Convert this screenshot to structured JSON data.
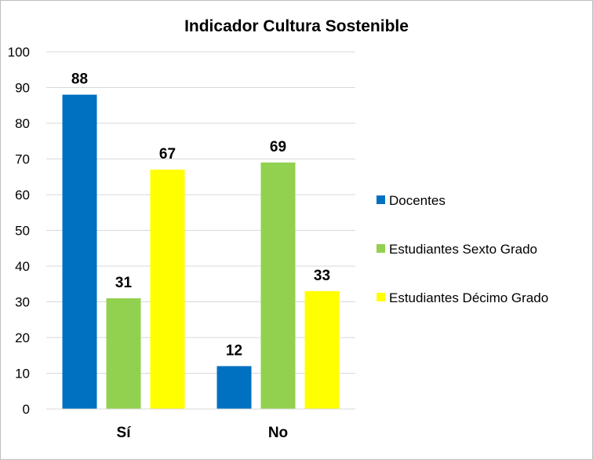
{
  "chart_data": {
    "type": "bar",
    "title": "Indicador Cultura Sostenible",
    "xlabel": "",
    "ylabel": "",
    "ylim": [
      0,
      100
    ],
    "yticks": [
      0,
      10,
      20,
      30,
      40,
      50,
      60,
      70,
      80,
      90,
      100
    ],
    "grid": true,
    "legend_position": "right",
    "categories": [
      "Sí",
      "No"
    ],
    "series": [
      {
        "name": "Docentes",
        "color": "#0070c0",
        "values": [
          88,
          12
        ]
      },
      {
        "name": "Estudiantes Sexto Grado",
        "color": "#92d050",
        "values": [
          31,
          69
        ]
      },
      {
        "name": "Estudiantes Décimo Grado",
        "color": "#ffff00",
        "values": [
          67,
          33
        ]
      }
    ]
  }
}
